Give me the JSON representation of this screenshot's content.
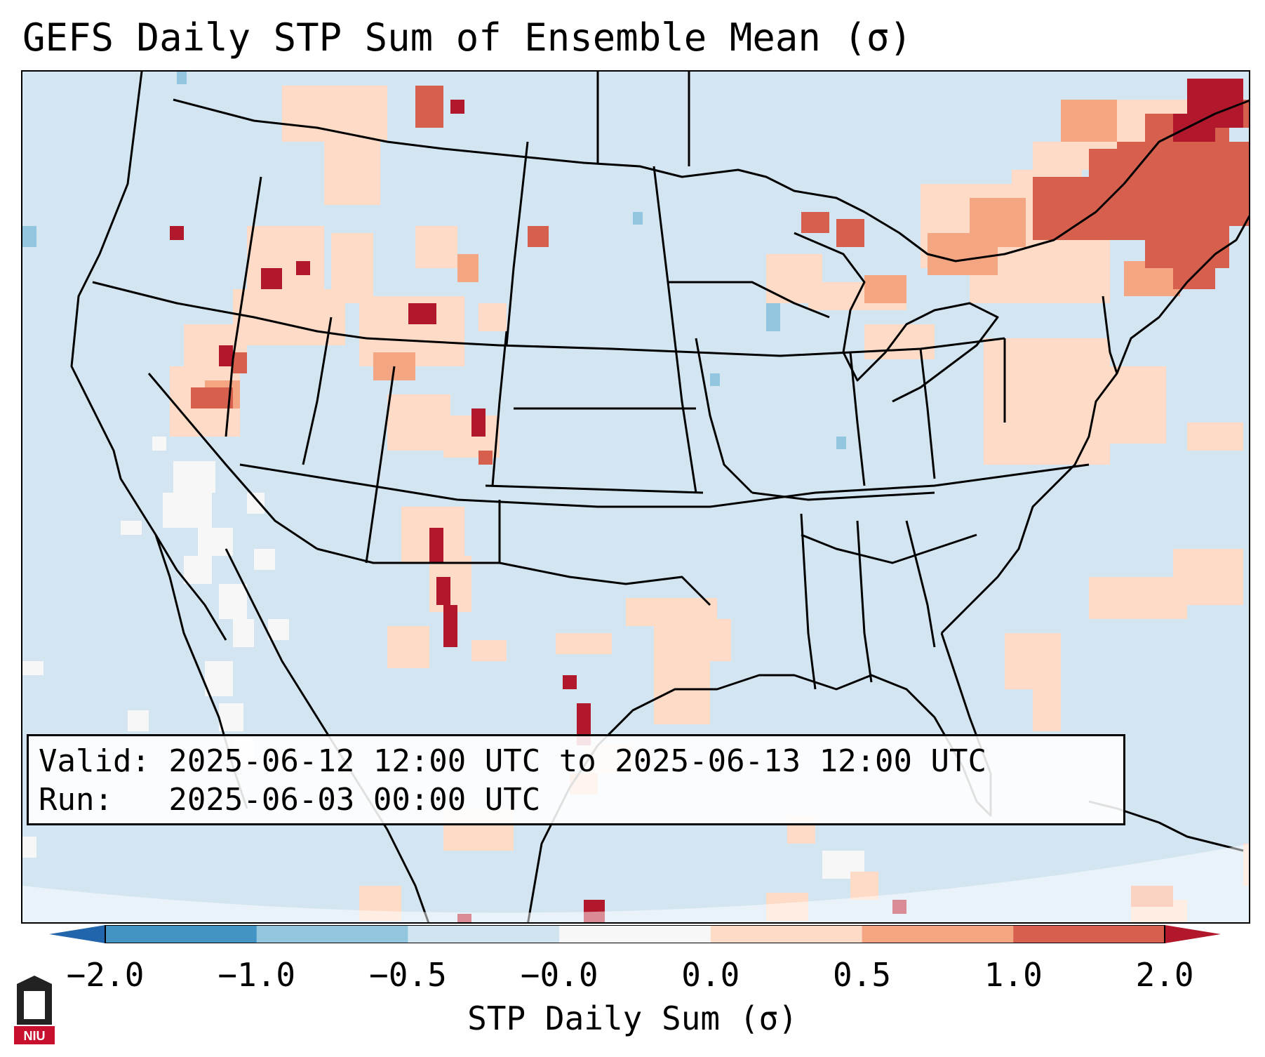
{
  "title": "GEFS Daily STP Sum of Ensemble Mean (σ)",
  "info": {
    "valid_line": "Valid: 2025-06-12 12:00 UTC to 2025-06-13 12:00 UTC",
    "run_line": "Run:   2025-06-03 00:00 UTC"
  },
  "colorbar": {
    "label": "STP Daily Sum (σ)",
    "tick_labels": [
      "−2.0",
      "−1.0",
      "−0.5",
      "−0.0",
      "0.0",
      "0.5",
      "1.0",
      "2.0"
    ],
    "bins": [
      {
        "lo": -2.0,
        "hi": -1.0,
        "color": "#4393c3"
      },
      {
        "lo": -1.0,
        "hi": -0.5,
        "color": "#92c5de"
      },
      {
        "lo": -0.5,
        "hi": -0.0,
        "color": "#d1e5f0"
      },
      {
        "lo": -0.0,
        "hi": 0.0,
        "color": "#f7f7f7"
      },
      {
        "lo": 0.0,
        "hi": 0.5,
        "color": "#fddbc7"
      },
      {
        "lo": 0.5,
        "hi": 1.0,
        "color": "#f4a582"
      },
      {
        "lo": 1.0,
        "hi": 2.0,
        "color": "#d6604d"
      }
    ],
    "under_color": "#2166ac",
    "over_color": "#b2182b"
  },
  "colors": {
    "background": "#d3e5f0",
    "near_zero": "#f7f7f7",
    "light_positive": "#fddbc7",
    "moderate_positive": "#f4a582",
    "strong_positive": "#d6604d",
    "extreme_positive": "#b2182b",
    "light_negative": "#92c5de"
  },
  "logo": {
    "text": "NIU"
  }
}
